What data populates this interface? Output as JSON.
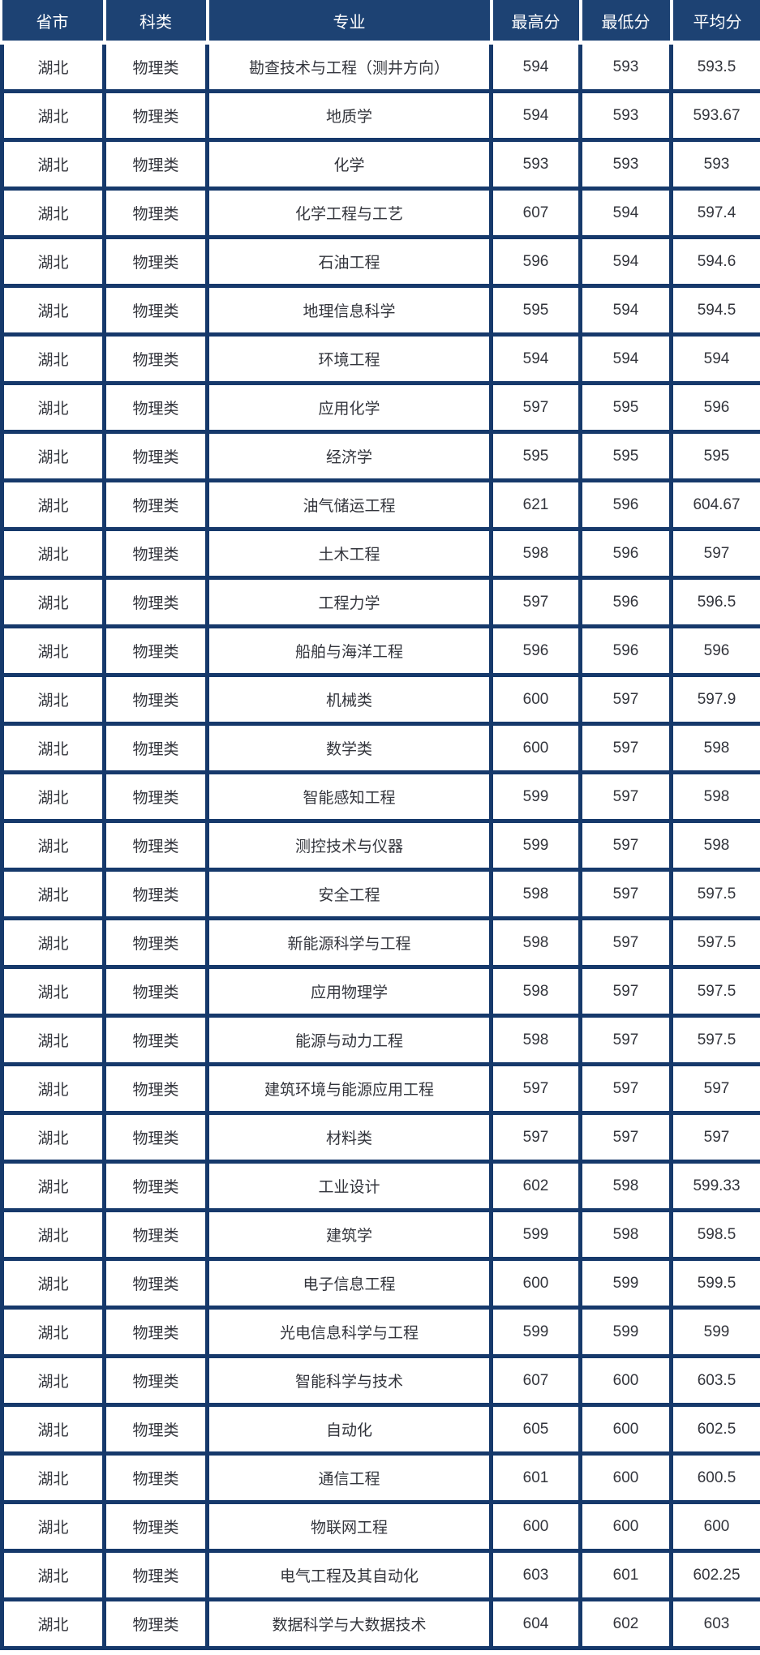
{
  "colors": {
    "header_bg": "#1d4273",
    "header_text": "#ffffff",
    "grid_border": "#16396b",
    "body_text": "#33353c"
  },
  "chart_data": {
    "type": "table",
    "title": "",
    "columns": [
      "省市",
      "科类",
      "专业",
      "最高分",
      "最低分",
      "平均分"
    ],
    "rows": [
      [
        "湖北",
        "物理类",
        "勘查技术与工程（测井方向）",
        "594",
        "593",
        "593.5"
      ],
      [
        "湖北",
        "物理类",
        "地质学",
        "594",
        "593",
        "593.67"
      ],
      [
        "湖北",
        "物理类",
        "化学",
        "593",
        "593",
        "593"
      ],
      [
        "湖北",
        "物理类",
        "化学工程与工艺",
        "607",
        "594",
        "597.4"
      ],
      [
        "湖北",
        "物理类",
        "石油工程",
        "596",
        "594",
        "594.6"
      ],
      [
        "湖北",
        "物理类",
        "地理信息科学",
        "595",
        "594",
        "594.5"
      ],
      [
        "湖北",
        "物理类",
        "环境工程",
        "594",
        "594",
        "594"
      ],
      [
        "湖北",
        "物理类",
        "应用化学",
        "597",
        "595",
        "596"
      ],
      [
        "湖北",
        "物理类",
        "经济学",
        "595",
        "595",
        "595"
      ],
      [
        "湖北",
        "物理类",
        "油气储运工程",
        "621",
        "596",
        "604.67"
      ],
      [
        "湖北",
        "物理类",
        "土木工程",
        "598",
        "596",
        "597"
      ],
      [
        "湖北",
        "物理类",
        "工程力学",
        "597",
        "596",
        "596.5"
      ],
      [
        "湖北",
        "物理类",
        "船舶与海洋工程",
        "596",
        "596",
        "596"
      ],
      [
        "湖北",
        "物理类",
        "机械类",
        "600",
        "597",
        "597.9"
      ],
      [
        "湖北",
        "物理类",
        "数学类",
        "600",
        "597",
        "598"
      ],
      [
        "湖北",
        "物理类",
        "智能感知工程",
        "599",
        "597",
        "598"
      ],
      [
        "湖北",
        "物理类",
        "测控技术与仪器",
        "599",
        "597",
        "598"
      ],
      [
        "湖北",
        "物理类",
        "安全工程",
        "598",
        "597",
        "597.5"
      ],
      [
        "湖北",
        "物理类",
        "新能源科学与工程",
        "598",
        "597",
        "597.5"
      ],
      [
        "湖北",
        "物理类",
        "应用物理学",
        "598",
        "597",
        "597.5"
      ],
      [
        "湖北",
        "物理类",
        "能源与动力工程",
        "598",
        "597",
        "597.5"
      ],
      [
        "湖北",
        "物理类",
        "建筑环境与能源应用工程",
        "597",
        "597",
        "597"
      ],
      [
        "湖北",
        "物理类",
        "材料类",
        "597",
        "597",
        "597"
      ],
      [
        "湖北",
        "物理类",
        "工业设计",
        "602",
        "598",
        "599.33"
      ],
      [
        "湖北",
        "物理类",
        "建筑学",
        "599",
        "598",
        "598.5"
      ],
      [
        "湖北",
        "物理类",
        "电子信息工程",
        "600",
        "599",
        "599.5"
      ],
      [
        "湖北",
        "物理类",
        "光电信息科学与工程",
        "599",
        "599",
        "599"
      ],
      [
        "湖北",
        "物理类",
        "智能科学与技术",
        "607",
        "600",
        "603.5"
      ],
      [
        "湖北",
        "物理类",
        "自动化",
        "605",
        "600",
        "602.5"
      ],
      [
        "湖北",
        "物理类",
        "通信工程",
        "601",
        "600",
        "600.5"
      ],
      [
        "湖北",
        "物理类",
        "物联网工程",
        "600",
        "600",
        "600"
      ],
      [
        "湖北",
        "物理类",
        "电气工程及其自动化",
        "603",
        "601",
        "602.25"
      ],
      [
        "湖北",
        "物理类",
        "数据科学与大数据技术",
        "604",
        "602",
        "603"
      ]
    ]
  }
}
